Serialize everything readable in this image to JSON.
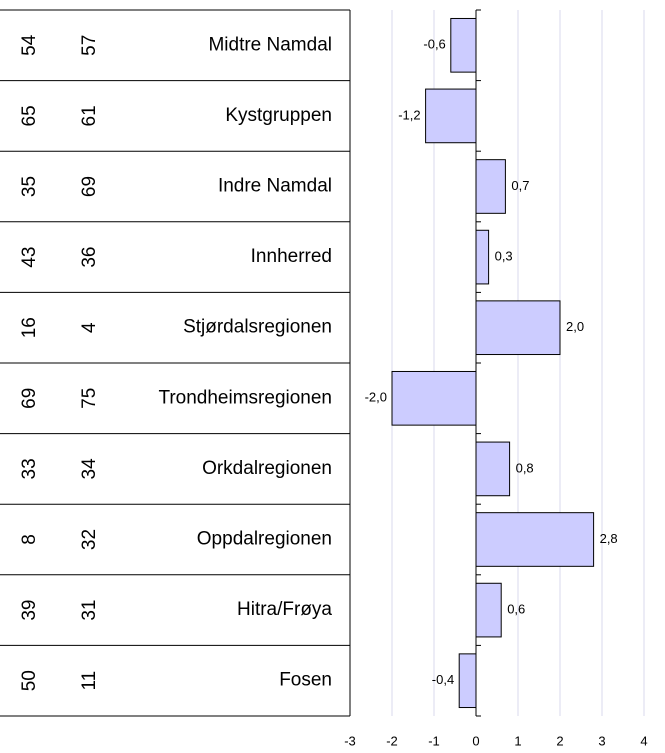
{
  "chart_data": {
    "type": "bar",
    "orientation": "horizontal",
    "categories": [
      "Midtre Namdal",
      "Kystgruppen",
      "Indre Namdal",
      "Innherred",
      "Stjørdalsregionen",
      "Trondheimsregionen",
      "Orkdalregionen",
      "Oppdalregionen",
      "Hitra/Frøya",
      "Fosen"
    ],
    "column_a": [
      "54",
      "65",
      "35",
      "43",
      "16",
      "69",
      "33",
      "8",
      "39",
      "50"
    ],
    "column_b": [
      "57",
      "61",
      "69",
      "36",
      "4",
      "75",
      "34",
      "32",
      "31",
      "11"
    ],
    "values": [
      -0.6,
      -1.2,
      0.7,
      0.3,
      2.0,
      -2.0,
      0.8,
      2.8,
      0.6,
      -0.4
    ],
    "value_labels": [
      "-0,6",
      "-1,2",
      "0,7",
      "0,3",
      "2,0",
      "-2,0",
      "0,8",
      "2,8",
      "0,6",
      "-0,4"
    ],
    "color": "#ccccff",
    "xlim": [
      -3,
      4
    ],
    "xticks": [
      -3,
      -2,
      -1,
      0,
      1,
      2,
      3,
      4
    ],
    "grid": true
  }
}
